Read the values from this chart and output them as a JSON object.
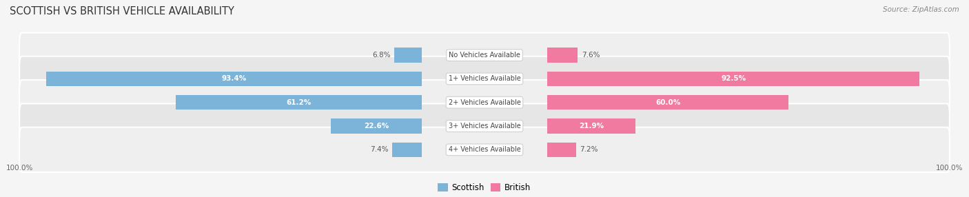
{
  "title": "SCOTTISH VS BRITISH VEHICLE AVAILABILITY",
  "source": "Source: ZipAtlas.com",
  "categories": [
    "No Vehicles Available",
    "1+ Vehicles Available",
    "2+ Vehicles Available",
    "3+ Vehicles Available",
    "4+ Vehicles Available"
  ],
  "scottish_values": [
    6.8,
    93.4,
    61.2,
    22.6,
    7.4
  ],
  "british_values": [
    7.6,
    92.5,
    60.0,
    21.9,
    7.2
  ],
  "scottish_color": "#7bb3d9",
  "british_color": "#f07aa0",
  "bg_color": "#f5f5f5",
  "row_bg_even": "#f0f0f0",
  "row_bg_odd": "#e8e8e8",
  "axis_max": 100.0,
  "bar_height": 0.62,
  "label_zone": 13.5,
  "figsize": [
    14.06,
    2.86
  ],
  "dpi": 100,
  "value_threshold": 15
}
